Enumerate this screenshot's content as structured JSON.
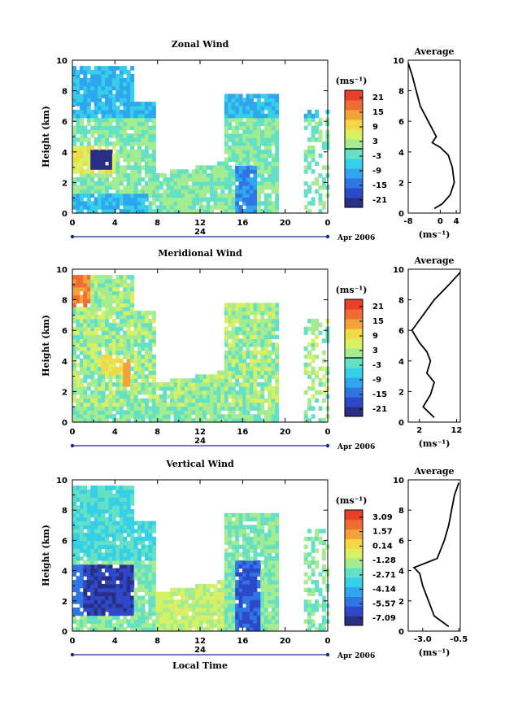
{
  "x_axis_label": "Local Time",
  "height_label": "Height (km)",
  "unit_label": "(ms⁻¹)",
  "date_label": "Apr 2006",
  "day_label": "24",
  "average_title": "Average",
  "colors": {
    "scale": [
      "#2a2f86",
      "#2d48c8",
      "#2f75e3",
      "#2fa6ee",
      "#36cfe8",
      "#64e0c5",
      "#a4ec8f",
      "#d8f064",
      "#f3d745",
      "#f3a23a",
      "#ef6c34",
      "#e93e2a"
    ]
  },
  "chart_data": [
    {
      "type": "heatmap",
      "title": "Zonal Wind",
      "ylabel": "Height (km)",
      "ylim": [
        0,
        10
      ],
      "x_ticks": [
        "0",
        "4",
        "8",
        "12",
        "16",
        "20",
        "0"
      ],
      "y_ticks": [
        "0",
        "2",
        "4",
        "6",
        "8",
        "10"
      ],
      "colorbar_ticks": [
        "21",
        "15",
        "9",
        "3",
        "-3",
        "-9",
        "-15",
        "-21"
      ],
      "average": {
        "title": "Average",
        "xlabel": "(ms⁻¹)",
        "x_ticks": [
          "-8",
          "0",
          "4"
        ],
        "xlim": [
          -8,
          5
        ],
        "profile": [
          [
            -1.5,
            0.3
          ],
          [
            0.5,
            0.6
          ],
          [
            2.5,
            1.2
          ],
          [
            3.5,
            2
          ],
          [
            3,
            3
          ],
          [
            2,
            3.8
          ],
          [
            0,
            4.3
          ],
          [
            -2,
            4.6
          ],
          [
            -1,
            5
          ],
          [
            -3,
            6
          ],
          [
            -5,
            7
          ],
          [
            -6,
            8
          ],
          [
            -7,
            9
          ],
          [
            -8,
            9.8
          ]
        ]
      }
    },
    {
      "type": "heatmap",
      "title": "Meridional Wind",
      "ylabel": "Height (km)",
      "ylim": [
        0,
        10
      ],
      "x_ticks": [
        "0",
        "4",
        "8",
        "12",
        "16",
        "20",
        "0"
      ],
      "y_ticks": [
        "0",
        "2",
        "4",
        "6",
        "8",
        "10"
      ],
      "colorbar_ticks": [
        "21",
        "15",
        "9",
        "3",
        "-3",
        "-9",
        "-15",
        "-21"
      ],
      "average": {
        "title": "Average",
        "xlabel": "(ms⁻¹)",
        "x_ticks": [
          "2",
          "12"
        ],
        "xlim": [
          -1,
          13
        ],
        "profile": [
          [
            6,
            0.3
          ],
          [
            3,
            1
          ],
          [
            5,
            1.8
          ],
          [
            6,
            2.6
          ],
          [
            4,
            3.2
          ],
          [
            5,
            4
          ],
          [
            4,
            4.6
          ],
          [
            2,
            5.2
          ],
          [
            0,
            6
          ],
          [
            3,
            7
          ],
          [
            6,
            8
          ],
          [
            10,
            9
          ],
          [
            13,
            9.8
          ]
        ]
      }
    },
    {
      "type": "heatmap",
      "title": "Vertical Wind",
      "ylabel": "Height (km)",
      "xlabel": "Local Time",
      "ylim": [
        0,
        10
      ],
      "x_ticks": [
        "0",
        "4",
        "8",
        "12",
        "16",
        "20",
        "0"
      ],
      "y_ticks": [
        "0",
        "2",
        "4",
        "6",
        "8",
        "10"
      ],
      "colorbar_ticks": [
        "3.09",
        "1.57",
        "0.14",
        "-1.28",
        "-2.71",
        "-4.14",
        "-5.57",
        "-7.09"
      ],
      "average": {
        "title": "Average",
        "xlabel": "(ms⁻¹)",
        "x_ticks": [
          "-3.0",
          "-0.5"
        ],
        "xlim": [
          -4,
          -0.4
        ],
        "profile": [
          [
            -1.2,
            0.3
          ],
          [
            -2.2,
            1
          ],
          [
            -2.6,
            2
          ],
          [
            -3.0,
            3
          ],
          [
            -3.2,
            3.8
          ],
          [
            -3.6,
            4.2
          ],
          [
            -2.0,
            4.8
          ],
          [
            -1.5,
            6
          ],
          [
            -1.2,
            7
          ],
          [
            -1.0,
            8
          ],
          [
            -0.8,
            9
          ],
          [
            -0.5,
            9.8
          ]
        ]
      }
    }
  ]
}
